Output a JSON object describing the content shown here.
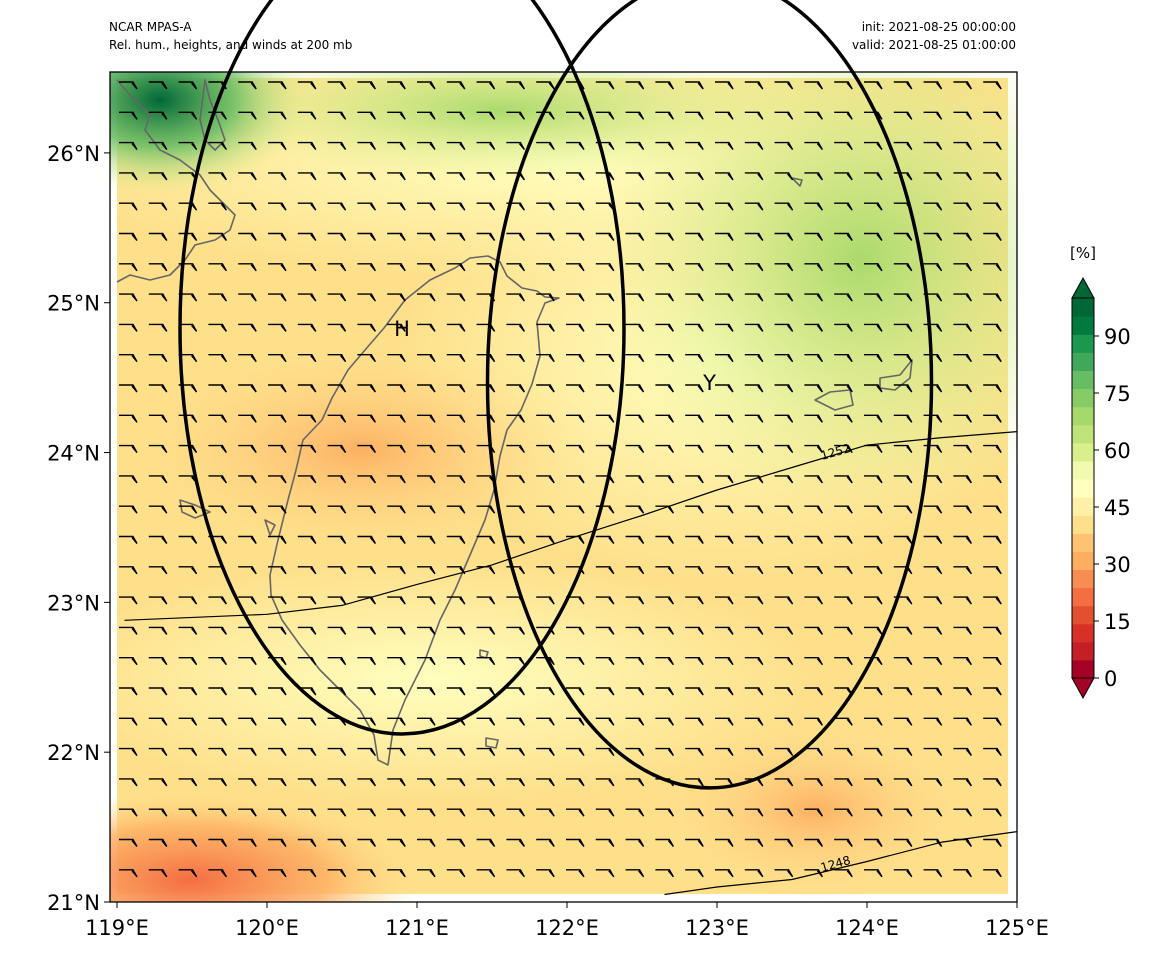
{
  "header": {
    "model": "NCAR MPAS-A",
    "field": "Rel. hum., heights, and winds at 200 mb",
    "init": "init: 2021-08-25 00:00:00",
    "valid": "valid: 2021-08-25 01:00:00"
  },
  "map": {
    "lon_range": [
      119,
      125
    ],
    "lat_range": [
      21,
      26.5
    ],
    "lon_ticks": [
      {
        "value": 119,
        "label": "119°E"
      },
      {
        "value": 120,
        "label": "120°E"
      },
      {
        "value": 121,
        "label": "121°E"
      },
      {
        "value": 122,
        "label": "122°E"
      },
      {
        "value": 123,
        "label": "123°E"
      },
      {
        "value": 124,
        "label": "124°E"
      },
      {
        "value": 125,
        "label": "125°E"
      }
    ],
    "lat_ticks": [
      {
        "value": 21,
        "label": "21°N"
      },
      {
        "value": 22,
        "label": "22°N"
      },
      {
        "value": 23,
        "label": "23°N"
      },
      {
        "value": 24,
        "label": "24°N"
      },
      {
        "value": 25,
        "label": "25°N"
      },
      {
        "value": 26,
        "label": "26°N"
      }
    ],
    "circles": [
      {
        "label": "H",
        "center_lon": 120.9,
        "center_lat": 24.83,
        "radius_deg": 1.48
      },
      {
        "label": "Y",
        "center_lon": 122.95,
        "center_lat": 24.47,
        "radius_deg": 1.48
      }
    ],
    "height_contours": [
      {
        "label": "1252",
        "label_lon": 123.7,
        "label_lat": 23.95,
        "points": [
          [
            119.05,
            22.88
          ],
          [
            120.0,
            22.92
          ],
          [
            120.5,
            22.98
          ],
          [
            121.0,
            23.12
          ],
          [
            121.5,
            23.25
          ],
          [
            122.0,
            23.42
          ],
          [
            122.5,
            23.58
          ],
          [
            123.0,
            23.75
          ],
          [
            123.5,
            23.9
          ],
          [
            124.0,
            24.05
          ],
          [
            124.5,
            24.1
          ],
          [
            125.0,
            24.14
          ]
        ]
      },
      {
        "label": "1248",
        "label_lon": 123.7,
        "label_lat": 21.2,
        "points": [
          [
            122.65,
            21.05
          ],
          [
            123.0,
            21.1
          ],
          [
            123.5,
            21.15
          ],
          [
            124.0,
            21.27
          ],
          [
            124.5,
            21.4
          ],
          [
            125.0,
            21.47
          ]
        ]
      }
    ],
    "colors": {
      "rh_low": "#f46d43",
      "rh_mid": "#fee08b",
      "rh_high": "#1a9850",
      "coast": "#666666"
    }
  },
  "colorbar": {
    "unit": "[%]",
    "range": [
      0,
      100
    ],
    "ticks": [
      {
        "value": 0,
        "label": "0"
      },
      {
        "value": 15,
        "label": "15"
      },
      {
        "value": 30,
        "label": "30"
      },
      {
        "value": 45,
        "label": "45"
      },
      {
        "value": 60,
        "label": "60"
      },
      {
        "value": 75,
        "label": "75"
      },
      {
        "value": 90,
        "label": "90"
      }
    ],
    "levels": [
      "#a50026",
      "#c41e27",
      "#d73027",
      "#e4502f",
      "#f46d43",
      "#f88d52",
      "#fdae61",
      "#fdc373",
      "#fee08b",
      "#fef0a7",
      "#ffffbf",
      "#f2f9b1",
      "#d9ef8b",
      "#bfe37b",
      "#a6d96a",
      "#86cb66",
      "#66bd63",
      "#3fa85a",
      "#1a9850",
      "#007a3f",
      "#006837"
    ]
  }
}
